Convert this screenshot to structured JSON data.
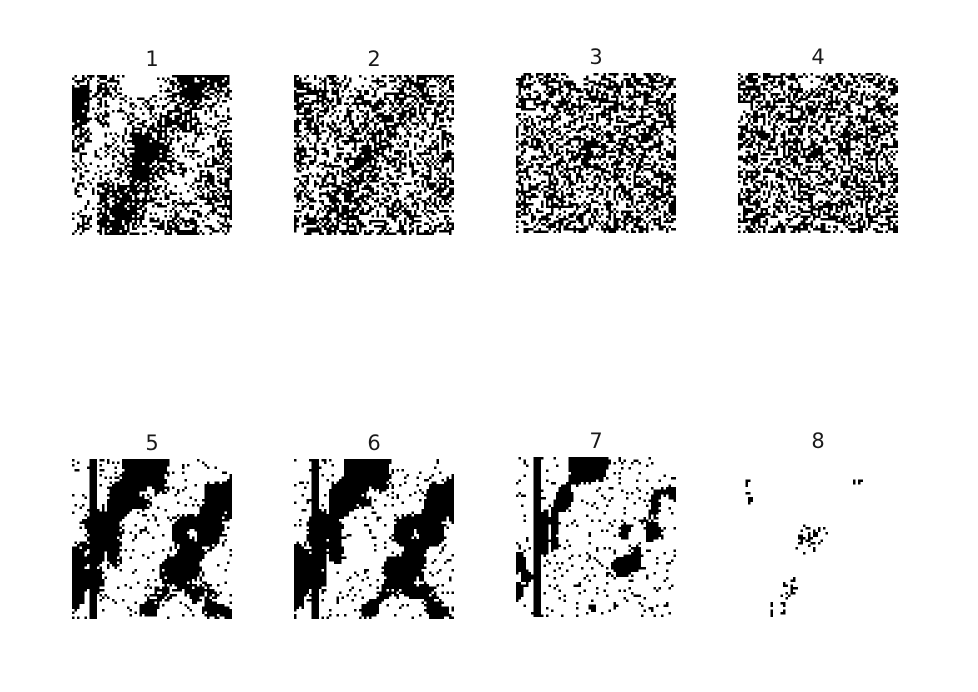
{
  "figure": {
    "panels": [
      {
        "label": "1"
      },
      {
        "label": "2"
      },
      {
        "label": "3"
      },
      {
        "label": "4"
      },
      {
        "label": "5"
      },
      {
        "label": "6"
      },
      {
        "label": "7"
      },
      {
        "label": "8"
      }
    ],
    "colors": {
      "background": "#ffffff",
      "foreground": "#000000"
    }
  }
}
